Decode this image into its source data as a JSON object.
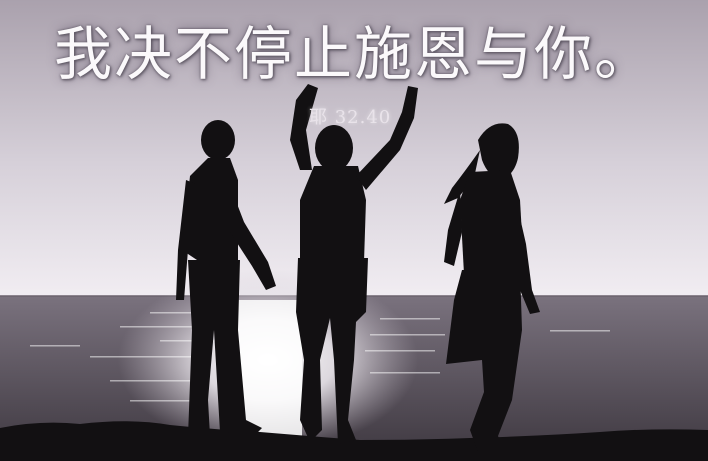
{
  "image": {
    "headline": "我决不停止施恩与你。",
    "reference": "耶 32.40",
    "colors": {
      "sky_top": "#b2a9b4",
      "sky_bottom": "#efeaf0",
      "sea": "#57505b",
      "silhouette": "#121012",
      "sun_glow": "#ffffff"
    }
  }
}
